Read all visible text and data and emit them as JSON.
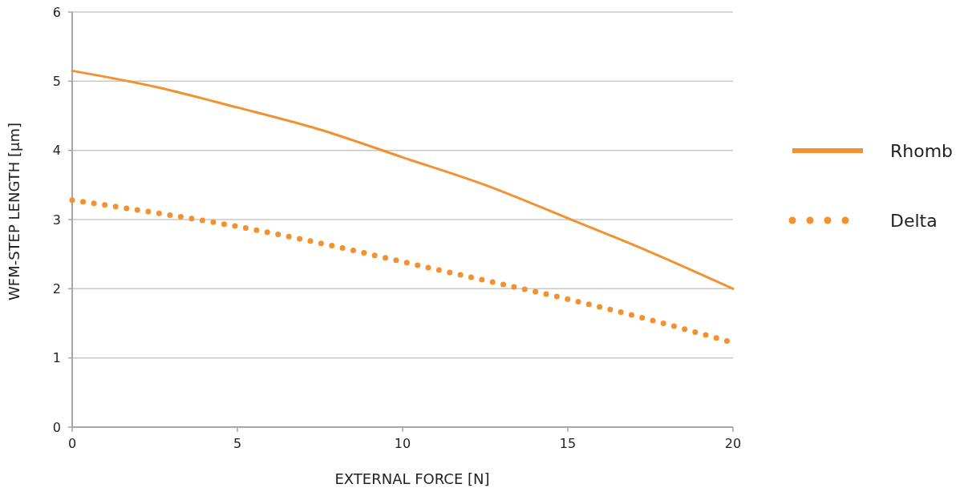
{
  "chart_data": {
    "type": "line",
    "xlabel": "EXTERNAL FORCE [N]",
    "ylabel": "WFM-STEP LENGTH [µm]",
    "x": [
      0,
      2.5,
      5,
      7.5,
      10,
      12.5,
      15,
      17.5,
      20
    ],
    "series": [
      {
        "name": "Rhomb",
        "color": "#f39131",
        "line_style": "solid",
        "values": [
          5.15,
          4.92,
          4.62,
          4.3,
          3.9,
          3.5,
          3.02,
          2.53,
          2.0
        ]
      },
      {
        "name": "Delta",
        "color": "#f39131",
        "line_style": "dotted",
        "values": [
          3.28,
          3.1,
          2.9,
          2.66,
          2.39,
          2.12,
          1.85,
          1.55,
          1.22
        ]
      }
    ],
    "xlim": [
      0,
      20
    ],
    "xticks": [
      0,
      5,
      10,
      15,
      20
    ],
    "ylim": [
      0,
      6
    ],
    "yticks": [
      0,
      1,
      2,
      3,
      4,
      5,
      6
    ],
    "grid": "y",
    "legend": "right",
    "marker": "none"
  }
}
